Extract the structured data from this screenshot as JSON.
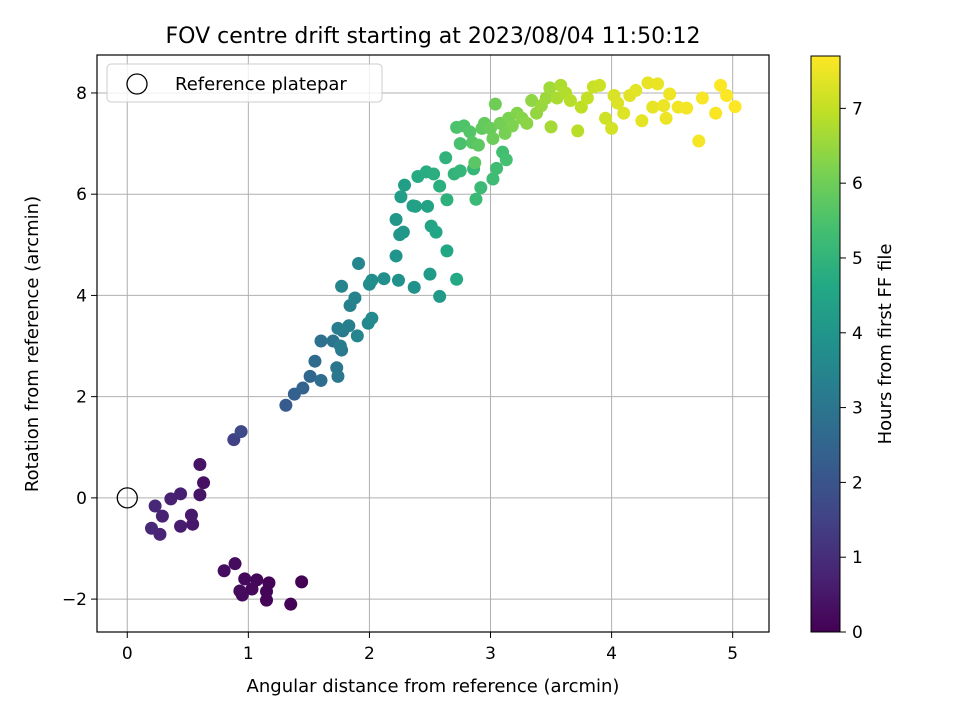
{
  "chart_data": {
    "type": "scatter",
    "title": "FOV centre drift starting at 2023/08/04 11:50:12",
    "xlabel": "Angular distance from reference (arcmin)",
    "ylabel": "Rotation from reference (arcmin)",
    "xlim": [
      -0.25,
      5.3
    ],
    "ylim": [
      -2.65,
      8.75
    ],
    "xticks": [
      0,
      1,
      2,
      3,
      4,
      5
    ],
    "yticks": [
      -2,
      0,
      2,
      4,
      6,
      8
    ],
    "grid": true,
    "legend": {
      "placement": "upper-left",
      "entries": [
        "Reference platepar"
      ]
    },
    "reference_point": {
      "x": 0,
      "y": 0
    },
    "colorbar": {
      "label": "Hours from first FF file",
      "colormap": "viridis",
      "range": [
        0,
        7.7
      ],
      "ticks": [
        0,
        1,
        2,
        3,
        4,
        5,
        6,
        7
      ]
    },
    "points": [
      [
        1.44,
        -1.66,
        0.02
      ],
      [
        1.35,
        -2.1,
        0.04
      ],
      [
        1.17,
        -1.68,
        0.07
      ],
      [
        1.15,
        -1.85,
        0.09
      ],
      [
        1.15,
        -2.02,
        0.11
      ],
      [
        1.07,
        -1.62,
        0.13
      ],
      [
        1.03,
        -1.8,
        0.15
      ],
      [
        0.97,
        -1.6,
        0.17
      ],
      [
        0.95,
        -1.92,
        0.2
      ],
      [
        0.93,
        -1.84,
        0.22
      ],
      [
        0.89,
        -1.3,
        0.24
      ],
      [
        0.8,
        -1.44,
        0.26
      ],
      [
        0.63,
        0.3,
        0.35
      ],
      [
        0.6,
        0.66,
        0.4
      ],
      [
        0.6,
        0.06,
        0.45
      ],
      [
        0.54,
        -0.52,
        0.5
      ],
      [
        0.53,
        -0.34,
        0.55
      ],
      [
        0.44,
        -0.56,
        0.6
      ],
      [
        0.44,
        0.08,
        0.65
      ],
      [
        0.36,
        -0.02,
        0.7
      ],
      [
        0.29,
        -0.36,
        0.75
      ],
      [
        0.27,
        -0.72,
        0.8
      ],
      [
        0.23,
        -0.16,
        0.85
      ],
      [
        0.2,
        -0.6,
        0.9
      ],
      [
        0.88,
        1.15,
        1.5
      ],
      [
        0.94,
        1.31,
        1.7
      ],
      [
        1.31,
        1.83,
        2.2
      ],
      [
        1.38,
        2.05,
        2.35
      ],
      [
        1.45,
        2.17,
        2.45
      ],
      [
        1.51,
        2.4,
        2.55
      ],
      [
        1.55,
        2.7,
        2.65
      ],
      [
        1.6,
        2.32,
        2.75
      ],
      [
        1.6,
        3.1,
        2.85
      ],
      [
        1.7,
        3.1,
        2.95
      ],
      [
        1.73,
        2.57,
        3.0
      ],
      [
        1.74,
        2.4,
        3.05
      ],
      [
        1.77,
        2.92,
        3.1
      ],
      [
        1.78,
        3.3,
        3.15
      ],
      [
        1.76,
        3.0,
        3.2
      ],
      [
        1.74,
        3.35,
        3.25
      ],
      [
        1.83,
        3.4,
        3.3
      ],
      [
        1.84,
        3.8,
        3.35
      ],
      [
        1.88,
        3.95,
        3.4
      ],
      [
        1.77,
        4.18,
        3.45
      ],
      [
        1.9,
        3.2,
        3.5
      ],
      [
        1.91,
        4.63,
        3.55
      ],
      [
        1.99,
        3.45,
        3.6
      ],
      [
        2.02,
        3.55,
        3.65
      ],
      [
        2.0,
        4.22,
        3.7
      ],
      [
        2.02,
        4.3,
        3.75
      ],
      [
        2.12,
        4.33,
        3.8
      ],
      [
        2.24,
        4.3,
        3.85
      ],
      [
        2.37,
        4.16,
        3.9
      ],
      [
        2.22,
        4.78,
        3.95
      ],
      [
        2.25,
        5.2,
        4.0
      ],
      [
        2.28,
        5.25,
        4.05
      ],
      [
        2.22,
        5.5,
        4.1
      ],
      [
        2.58,
        3.98,
        4.15
      ],
      [
        2.5,
        4.42,
        4.2
      ],
      [
        2.26,
        5.95,
        4.25
      ],
      [
        2.29,
        6.18,
        4.3
      ],
      [
        2.36,
        5.77,
        4.35
      ],
      [
        2.38,
        5.76,
        4.4
      ],
      [
        2.48,
        5.76,
        4.45
      ],
      [
        2.51,
        5.37,
        4.5
      ],
      [
        2.55,
        5.25,
        4.55
      ],
      [
        2.64,
        4.88,
        4.6
      ],
      [
        2.72,
        4.32,
        4.65
      ],
      [
        2.4,
        6.35,
        4.7
      ],
      [
        2.47,
        6.44,
        4.75
      ],
      [
        2.53,
        6.4,
        4.8
      ],
      [
        2.58,
        6.16,
        4.85
      ],
      [
        2.64,
        5.89,
        4.9
      ],
      [
        2.63,
        6.72,
        4.95
      ],
      [
        2.7,
        6.4,
        5.0
      ],
      [
        2.75,
        6.46,
        5.05
      ],
      [
        2.86,
        6.5,
        5.1
      ],
      [
        2.88,
        5.9,
        5.15
      ],
      [
        2.92,
        6.13,
        5.2
      ],
      [
        3.02,
        6.3,
        5.25
      ],
      [
        3.05,
        6.51,
        5.3
      ],
      [
        3.1,
        6.83,
        5.35
      ],
      [
        3.13,
        6.68,
        5.4
      ],
      [
        2.75,
        7.0,
        5.45
      ],
      [
        2.72,
        7.32,
        5.5
      ],
      [
        2.78,
        7.35,
        5.55
      ],
      [
        2.83,
        7.23,
        5.6
      ],
      [
        2.85,
        7.02,
        5.65
      ],
      [
        2.87,
        6.62,
        5.7
      ],
      [
        2.9,
        6.97,
        5.75
      ],
      [
        2.93,
        7.3,
        5.8
      ],
      [
        2.95,
        7.4,
        5.85
      ],
      [
        3.0,
        7.3,
        5.9
      ],
      [
        3.02,
        7.1,
        5.95
      ],
      [
        3.04,
        7.78,
        6.0
      ],
      [
        3.08,
        7.4,
        6.05
      ],
      [
        3.12,
        7.2,
        6.1
      ],
      [
        3.15,
        7.5,
        6.15
      ],
      [
        3.18,
        7.35,
        6.2
      ],
      [
        3.22,
        7.6,
        6.25
      ],
      [
        3.26,
        7.5,
        6.3
      ],
      [
        3.3,
        7.4,
        6.35
      ],
      [
        3.34,
        7.85,
        6.4
      ],
      [
        3.38,
        7.6,
        6.45
      ],
      [
        3.42,
        7.75,
        6.5
      ],
      [
        3.46,
        7.9,
        6.55
      ],
      [
        3.49,
        8.1,
        6.6
      ],
      [
        3.5,
        7.33,
        6.65
      ],
      [
        3.55,
        7.9,
        6.7
      ],
      [
        3.58,
        8.15,
        6.75
      ],
      [
        3.62,
        8.0,
        6.8
      ],
      [
        3.66,
        7.85,
        6.85
      ],
      [
        3.72,
        7.25,
        6.9
      ],
      [
        3.75,
        7.72,
        6.95
      ],
      [
        3.8,
        7.9,
        7.0
      ],
      [
        3.85,
        8.12,
        7.05
      ],
      [
        3.9,
        8.15,
        7.1
      ],
      [
        3.95,
        7.5,
        7.15
      ],
      [
        4.0,
        7.3,
        7.2
      ],
      [
        4.02,
        7.95,
        7.25
      ],
      [
        4.05,
        7.8,
        7.3
      ],
      [
        4.1,
        7.6,
        7.32
      ],
      [
        4.15,
        7.95,
        7.35
      ],
      [
        4.2,
        8.05,
        7.38
      ],
      [
        4.25,
        7.45,
        7.4
      ],
      [
        4.3,
        8.2,
        7.42
      ],
      [
        4.34,
        7.72,
        7.44
      ],
      [
        4.38,
        8.18,
        7.46
      ],
      [
        4.43,
        7.75,
        7.48
      ],
      [
        4.45,
        7.5,
        7.5
      ],
      [
        4.48,
        7.98,
        7.52
      ],
      [
        4.55,
        7.72,
        7.55
      ],
      [
        4.62,
        7.7,
        7.57
      ],
      [
        4.72,
        7.05,
        7.6
      ],
      [
        4.75,
        7.9,
        7.62
      ],
      [
        4.86,
        7.6,
        7.64
      ],
      [
        4.9,
        8.15,
        7.66
      ],
      [
        4.95,
        7.95,
        7.68
      ],
      [
        5.02,
        7.73,
        7.7
      ]
    ]
  }
}
